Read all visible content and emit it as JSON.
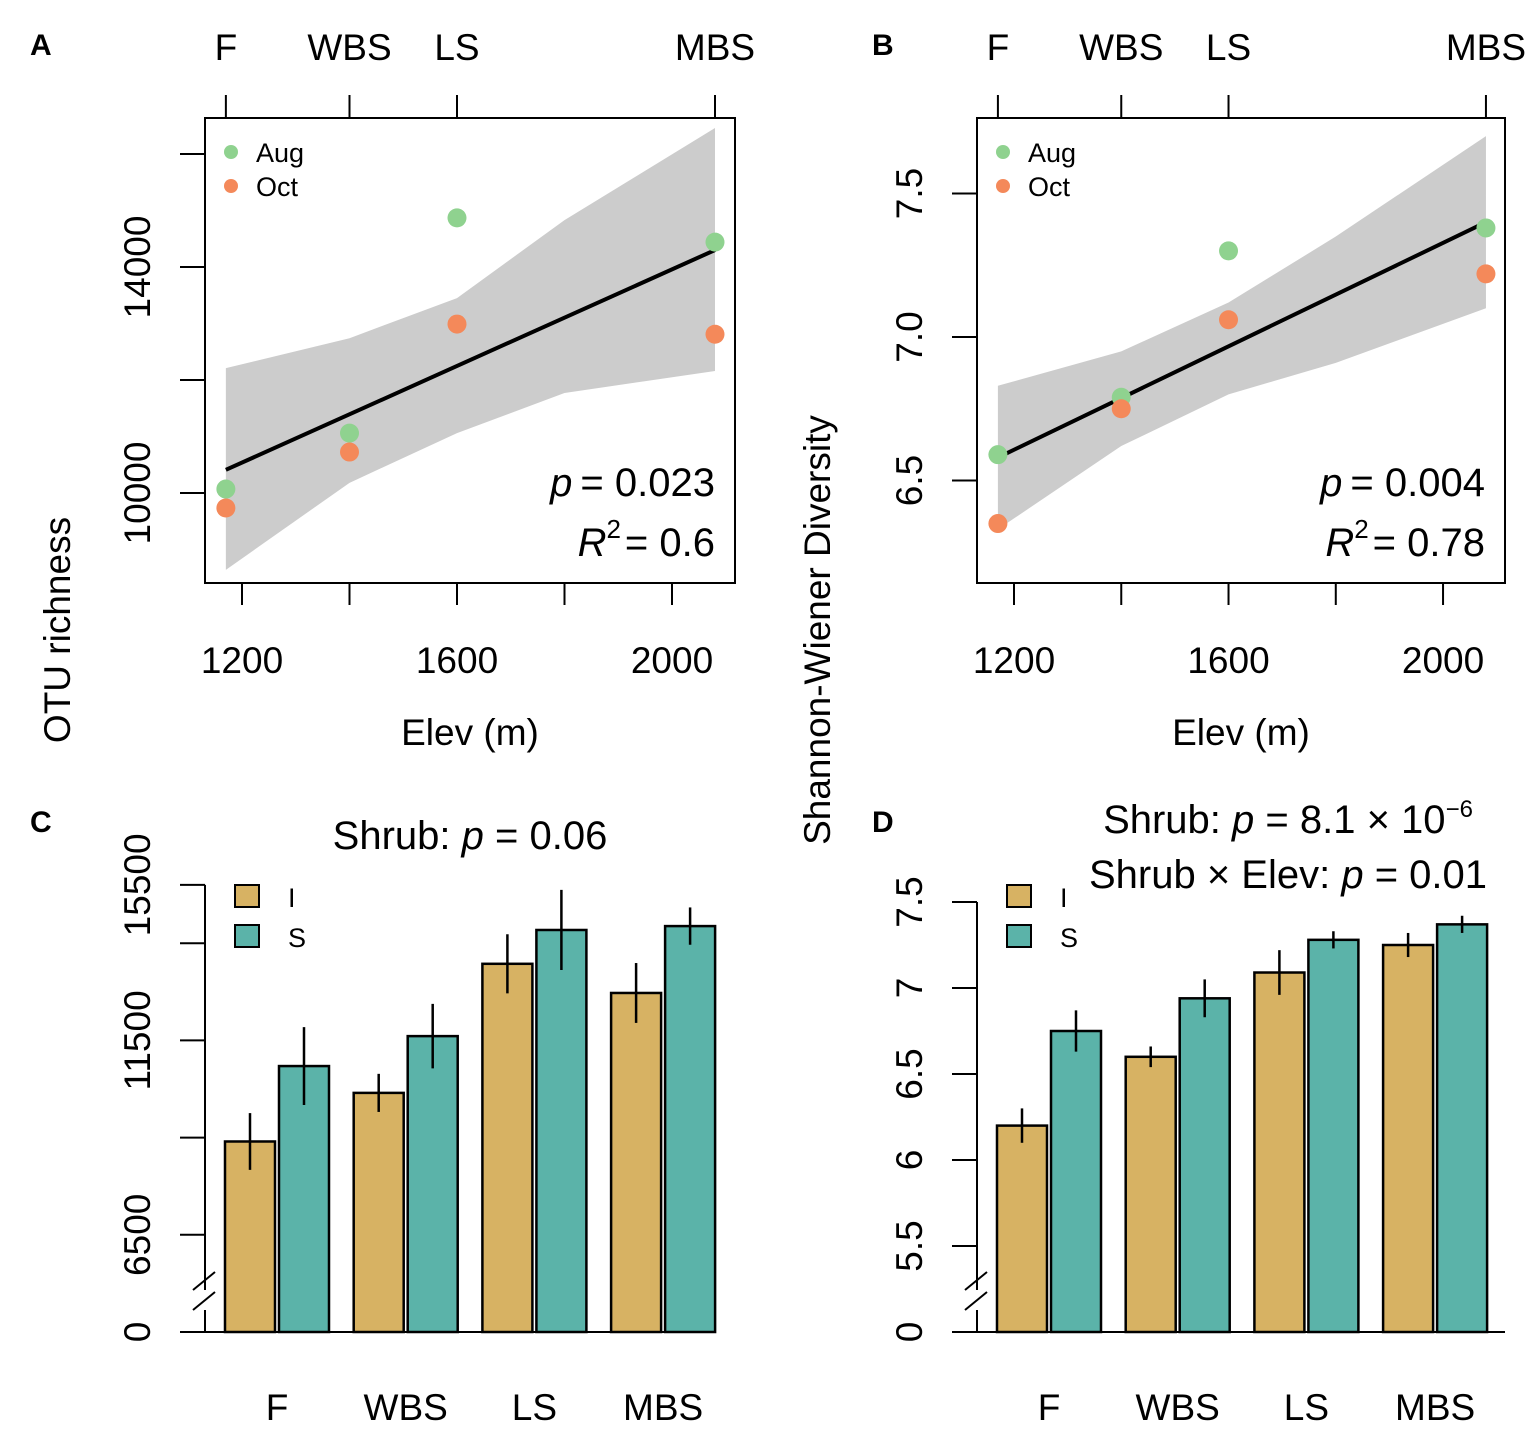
{
  "chart_data": [
    {
      "panel": "A",
      "type": "scatter",
      "xlabel": "Elev (m)",
      "ylabel": "OTU richness",
      "x_ticks": [
        1200,
        1400,
        1600,
        1800,
        2000
      ],
      "x_tick_labels": [
        "1200",
        "",
        "1600",
        "",
        "2000"
      ],
      "y_ticks": [
        10000,
        12000,
        14000,
        16000
      ],
      "y_tick_labels": [
        "10000",
        "",
        "14000",
        ""
      ],
      "ylim": [
        8400,
        16700
      ],
      "top_axis": {
        "positions": [
          1170,
          1400,
          1600,
          2080
        ],
        "labels": [
          "F",
          "WBS",
          "LS",
          "MBS"
        ]
      },
      "x": [
        1170,
        1400,
        1600,
        2080
      ],
      "series": [
        {
          "name": "Aug",
          "color": "#8fd28f",
          "values": [
            10070,
            11060,
            14870,
            14440
          ]
        },
        {
          "name": "Oct",
          "color": "#f4895a",
          "values": [
            9735,
            10725,
            12990,
            12810
          ]
        }
      ],
      "fit": {
        "x": [
          1170,
          2080
        ],
        "y": [
          10410,
          14300
        ]
      },
      "ci_band": {
        "color": "#cccccc",
        "x": [
          1170,
          1400,
          1600,
          1800,
          2080
        ],
        "upper": [
          12210,
          12740,
          13450,
          14830,
          16460
        ],
        "lower": [
          8640,
          10180,
          11060,
          11770,
          12160
        ]
      },
      "annotation": {
        "p_symbol": "p",
        "p": "= 0.023",
        "r_symbol": "R",
        "r_sup": "2",
        "r2": "= 0.6"
      },
      "grid": false,
      "legend_position": "top-left"
    },
    {
      "panel": "B",
      "type": "scatter",
      "xlabel": "Elev (m)",
      "ylabel": "Shannon-Wiener Diversity",
      "x_ticks": [
        1200,
        1400,
        1600,
        1800,
        2000
      ],
      "x_tick_labels": [
        "1200",
        "",
        "1600",
        "",
        "2000"
      ],
      "y_ticks": [
        6.5,
        7.0,
        7.5
      ],
      "y_tick_labels": [
        "6.5",
        "7.0",
        "7.5"
      ],
      "ylim": [
        6.18,
        7.82
      ],
      "top_axis": {
        "positions": [
          1170,
          1400,
          1600,
          2080
        ],
        "labels": [
          "F",
          "WBS",
          "LS",
          "MBS"
        ]
      },
      "x": [
        1170,
        1400,
        1600,
        2080
      ],
      "series": [
        {
          "name": "Aug",
          "color": "#8fd28f",
          "values": [
            6.59,
            6.79,
            7.3,
            7.38
          ]
        },
        {
          "name": "Oct",
          "color": "#f4895a",
          "values": [
            6.35,
            6.75,
            7.06,
            7.22
          ]
        }
      ],
      "fit": {
        "x": [
          1170,
          2080
        ],
        "y": [
          6.58,
          7.4
        ]
      },
      "ci_band": {
        "color": "#cccccc",
        "x": [
          1170,
          1400,
          1600,
          1800,
          2080
        ],
        "upper": [
          6.83,
          6.95,
          7.12,
          7.35,
          7.7
        ],
        "lower": [
          6.33,
          6.62,
          6.8,
          6.91,
          7.1
        ]
      },
      "annotation": {
        "p_symbol": "p",
        "p": "= 0.004",
        "r_symbol": "R",
        "r_sup": "2",
        "r2": "= 0.78"
      },
      "grid": false,
      "legend_position": "top-left"
    },
    {
      "panel": "C",
      "type": "bar",
      "categories": [
        "F",
        "WBS",
        "LS",
        "MBS"
      ],
      "y_ticks": [
        0,
        6500,
        9000,
        11500,
        14000,
        15500
      ],
      "y_tick_labels": [
        "0",
        "6500",
        "",
        "11500",
        "",
        "15500"
      ],
      "axis_break": true,
      "title_lines": [
        [
          {
            "t": "Shrub: "
          },
          {
            "t": "p",
            "i": true
          },
          {
            "t": " = 0.06"
          }
        ]
      ],
      "series": [
        {
          "name": "I",
          "color": "#d7b263",
          "values": [
            8900,
            10150,
            13470,
            12720
          ],
          "errors": [
            730,
            490,
            760,
            770
          ]
        },
        {
          "name": "S",
          "color": "#5bb3a9",
          "values": [
            10840,
            11610,
            14340,
            14440
          ],
          "errors": [
            1000,
            830,
            1030,
            480
          ]
        }
      ],
      "legend_position": "top-left"
    },
    {
      "panel": "D",
      "type": "bar",
      "categories": [
        "F",
        "WBS",
        "LS",
        "MBS"
      ],
      "y_ticks": [
        0,
        5.5,
        6,
        6.5,
        7,
        7.5
      ],
      "y_tick_labels": [
        "0",
        "5.5",
        "6",
        "6.5",
        "7",
        "7.5"
      ],
      "axis_break": true,
      "title_lines": [
        [
          {
            "t": "Shrub: "
          },
          {
            "t": "p",
            "i": true
          },
          {
            "t": " = 8.1 × 10"
          },
          {
            "t": "−6",
            "sup": true
          }
        ],
        [
          {
            "t": "Shrub × Elev: "
          },
          {
            "t": "p",
            "i": true
          },
          {
            "t": " = 0.01"
          }
        ]
      ],
      "series": [
        {
          "name": "I",
          "color": "#d7b263",
          "values": [
            6.2,
            6.6,
            7.09,
            7.25
          ],
          "errors": [
            0.1,
            0.06,
            0.13,
            0.07
          ]
        },
        {
          "name": "S",
          "color": "#5bb3a9",
          "values": [
            6.75,
            6.94,
            7.28,
            7.37
          ],
          "errors": [
            0.12,
            0.11,
            0.05,
            0.05
          ]
        }
      ],
      "legend_position": "top-left"
    }
  ]
}
